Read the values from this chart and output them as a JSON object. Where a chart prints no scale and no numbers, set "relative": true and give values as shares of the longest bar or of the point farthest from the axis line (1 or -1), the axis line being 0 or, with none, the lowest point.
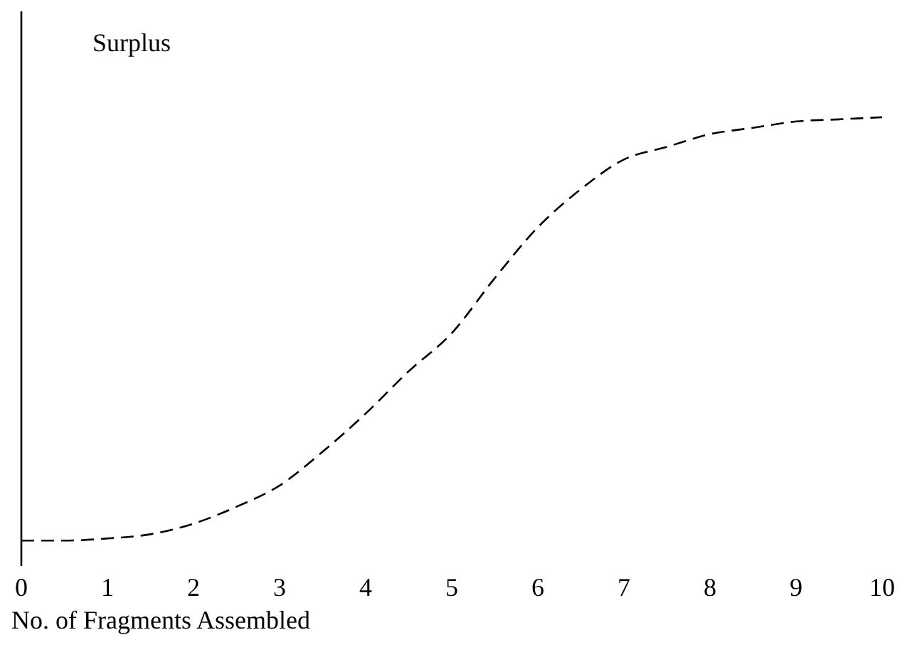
{
  "chart_data": {
    "type": "line",
    "relative": true,
    "ylabel": "Surplus",
    "xlabel": "No. of Fragments Assembled",
    "x": [
      0,
      0.5,
      1,
      1.5,
      2,
      2.5,
      3,
      3.5,
      4,
      4.5,
      5,
      5.5,
      6,
      6.5,
      7,
      7.5,
      8,
      8.5,
      9,
      9.5,
      10
    ],
    "series": [
      {
        "color": "#000000",
        "values": [
          0,
          0,
          0.005,
          0.015,
          0.04,
          0.08,
          0.13,
          0.21,
          0.3,
          0.4,
          0.49,
          0.62,
          0.74,
          0.83,
          0.9,
          0.93,
          0.96,
          0.975,
          0.99,
          0.995,
          1
        ]
      }
    ],
    "xlim": [
      0,
      10
    ],
    "xticks": [
      0,
      1,
      2,
      3,
      4,
      5,
      6,
      7,
      8,
      9,
      10
    ],
    "grid": false,
    "legend": false,
    "marker": "none",
    "line_style": "dashed"
  }
}
